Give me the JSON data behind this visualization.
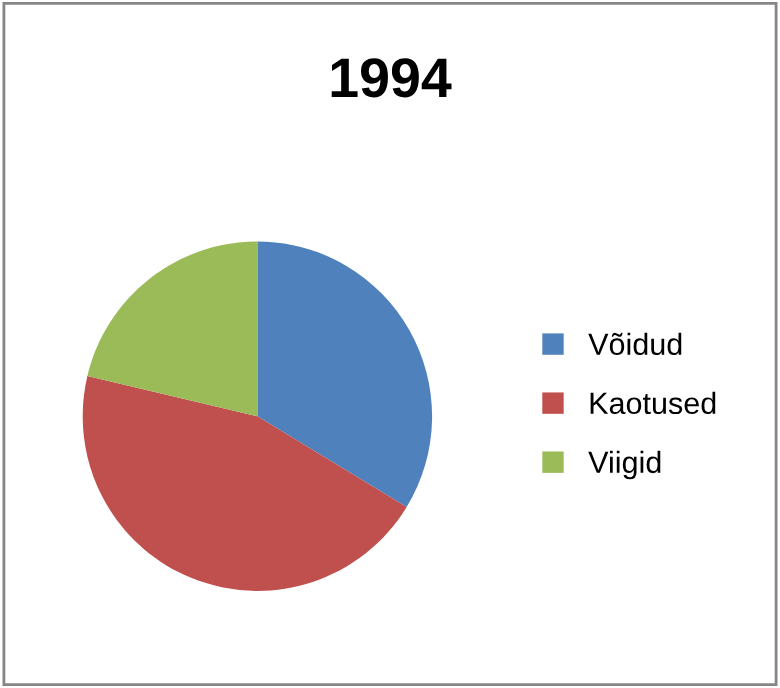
{
  "chart_data": {
    "type": "pie",
    "title": "1994",
    "categories": [
      "Võidud",
      "Kaotused",
      "Viigid"
    ],
    "values": [
      33.7,
      45,
      21.3
    ],
    "colors": [
      "#4f81bd",
      "#c0504d",
      "#9bbb59"
    ],
    "legend": "right"
  }
}
